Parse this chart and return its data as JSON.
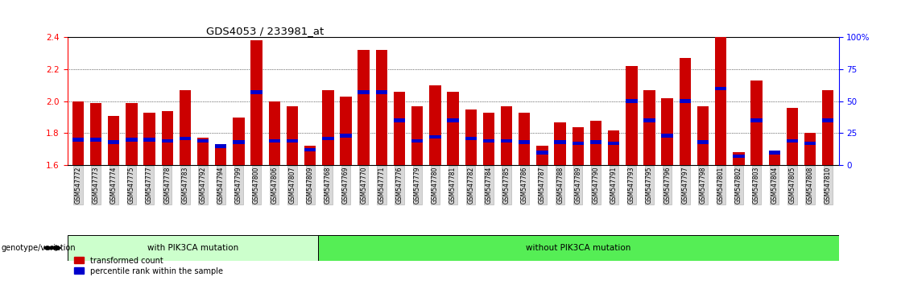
{
  "title": "GDS4053 / 233981_at",
  "samples": [
    "GSM547772",
    "GSM547773",
    "GSM547774",
    "GSM547775",
    "GSM547777",
    "GSM547778",
    "GSM547783",
    "GSM547792",
    "GSM547794",
    "GSM547799",
    "GSM547800",
    "GSM547806",
    "GSM547807",
    "GSM547809",
    "GSM547768",
    "GSM547769",
    "GSM547770",
    "GSM547771",
    "GSM547776",
    "GSM547779",
    "GSM547780",
    "GSM547781",
    "GSM547782",
    "GSM547784",
    "GSM547785",
    "GSM547786",
    "GSM547787",
    "GSM547788",
    "GSM547789",
    "GSM547790",
    "GSM547791",
    "GSM547793",
    "GSM547795",
    "GSM547796",
    "GSM547797",
    "GSM547798",
    "GSM547801",
    "GSM547802",
    "GSM547803",
    "GSM547804",
    "GSM547805",
    "GSM547808",
    "GSM547810"
  ],
  "red_values": [
    2.0,
    1.99,
    1.91,
    1.99,
    1.93,
    1.94,
    2.07,
    1.77,
    1.73,
    1.9,
    2.38,
    2.0,
    1.97,
    1.72,
    2.07,
    2.03,
    2.32,
    2.32,
    2.06,
    1.97,
    2.1,
    2.06,
    1.95,
    1.93,
    1.97,
    1.93,
    1.72,
    1.87,
    1.84,
    1.88,
    1.82,
    2.22,
    2.07,
    2.02,
    2.27,
    1.97,
    2.4,
    1.68,
    2.13,
    1.68,
    1.96,
    1.8,
    2.07
  ],
  "percentile_values": [
    20,
    20,
    18,
    20,
    20,
    19,
    21,
    19,
    15,
    18,
    57,
    19,
    19,
    12,
    21,
    23,
    57,
    57,
    35,
    19,
    22,
    35,
    21,
    19,
    19,
    18,
    10,
    18,
    17,
    18,
    17,
    50,
    35,
    23,
    50,
    18,
    60,
    7,
    35,
    10,
    19,
    17,
    35
  ],
  "with_mutation_count": 14,
  "ylim": [
    1.6,
    2.4
  ],
  "y2lim": [
    0,
    100
  ],
  "yticks": [
    1.6,
    1.8,
    2.0,
    2.2,
    2.4
  ],
  "y2ticks": [
    0,
    25,
    50,
    75,
    100
  ],
  "bar_color": "#cc0000",
  "blue_color": "#0000cc",
  "with_bg": "#ccffcc",
  "without_bg": "#55ee55",
  "genotype_label": "genotype/variation",
  "with_label": "with PIK3CA mutation",
  "without_label": "without PIK3CA mutation",
  "legend_red": "transformed count",
  "legend_blue": "percentile rank within the sample"
}
